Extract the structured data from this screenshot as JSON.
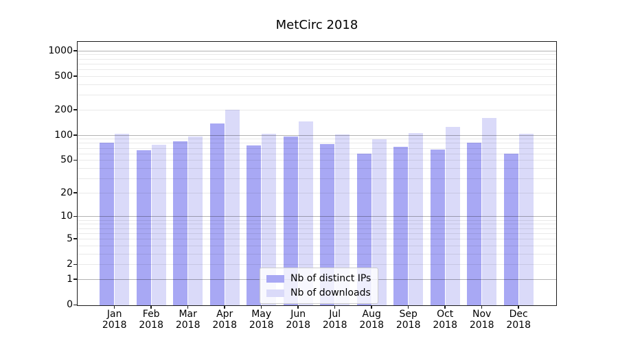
{
  "chart_data": {
    "type": "bar",
    "title": "MetCirc 2018",
    "categories": [
      "Jan",
      "Feb",
      "Mar",
      "Apr",
      "May",
      "Jun",
      "Jul",
      "Aug",
      "Sep",
      "Oct",
      "Nov",
      "Dec"
    ],
    "year_label": "2018",
    "series": [
      {
        "name": "Nb of distinct IPs",
        "color": "#a8a8f4",
        "values": [
          81,
          66,
          84,
          138,
          75,
          96,
          78,
          60,
          72,
          67,
          81,
          60
        ]
      },
      {
        "name": "Nb of downloads",
        "color": "#dadaf9",
        "values": [
          103,
          76,
          95,
          200,
          103,
          145,
          102,
          88,
          106,
          124,
          160,
          103
        ]
      }
    ],
    "y_axis": {
      "scale": "log1p",
      "tick_labels": [
        1000,
        500,
        200,
        100,
        50,
        20,
        10,
        5,
        2,
        1,
        0
      ],
      "ylim": [
        0,
        1200
      ]
    },
    "grid": {
      "major_lines": [
        1,
        10,
        100,
        1000
      ],
      "minor_subs": [
        2,
        3,
        4,
        5,
        6,
        7,
        8,
        9
      ],
      "minor_decades": [
        1,
        10,
        100
      ]
    },
    "legend_position": "lower-center"
  },
  "colors": {
    "background": "#ffffff",
    "spine": "#1a1a1a",
    "grid_major": "#b3b3b3",
    "grid_minor": "#e9e9e9",
    "legend_border": "#cccccc"
  }
}
